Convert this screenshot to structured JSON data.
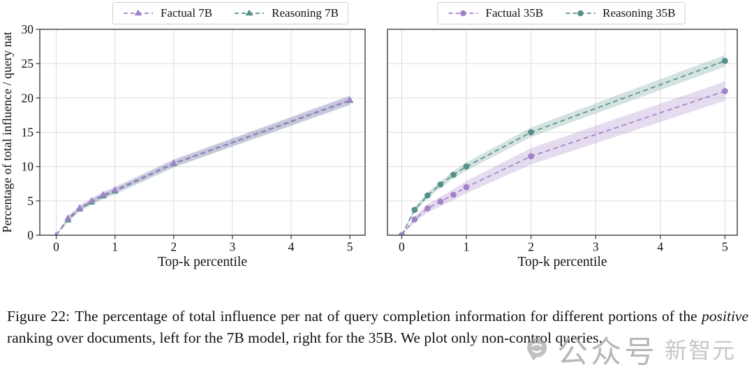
{
  "caption": {
    "label": "Figure 22:",
    "before_italic": "The percentage of total influence per nat of query completion information for different portions of the ",
    "italic": "positive",
    "after_italic": " ranking over documents, left for the 7B model, right for the 35B. We plot only non-control queries."
  },
  "watermark": {
    "icon": "chat-bubble-icon",
    "text_primary": "公众号",
    "text_secondary": "新智元"
  },
  "colors": {
    "factual_purple": "#a283c8",
    "reasoning_teal": "#55918a",
    "grid": "#dcdcdc",
    "spine": "#4a4a4a"
  },
  "chart_data": [
    {
      "type": "line",
      "title": "",
      "xlabel": "Top-k percentile",
      "ylabel": "Percentage of total influence / query nat",
      "xlim": [
        -0.28,
        5.26
      ],
      "ylim": [
        0,
        30
      ],
      "xticks": [
        0,
        1,
        2,
        3,
        4,
        5
      ],
      "yticks": [
        0,
        5,
        10,
        15,
        20,
        25,
        30
      ],
      "grid": true,
      "legend_position": "top-center",
      "show_y_tick_labels": true,
      "x": [
        0,
        0.2,
        0.4,
        0.6,
        0.8,
        1,
        2,
        5
      ],
      "series": [
        {
          "name": "Factual 7B",
          "marker": "triangle",
          "color": "#a283c8",
          "band_color": "rgba(162,131,200,0.28)",
          "values": [
            0,
            2.5,
            4.0,
            5.0,
            5.9,
            6.6,
            10.5,
            19.7
          ],
          "band": [
            0.05,
            0.3,
            0.35,
            0.4,
            0.45,
            0.45,
            0.55,
            0.65
          ]
        },
        {
          "name": "Reasoning 7B",
          "marker": "triangle",
          "color": "#55918a",
          "band_color": "rgba(85,145,138,0.25)",
          "values": [
            0,
            2.2,
            3.8,
            4.8,
            5.7,
            6.4,
            10.4,
            19.6
          ],
          "band": [
            0.05,
            0.3,
            0.35,
            0.4,
            0.45,
            0.45,
            0.55,
            0.65
          ]
        }
      ]
    },
    {
      "type": "line",
      "title": "",
      "xlabel": "Top-k percentile",
      "ylabel": "",
      "xlim": [
        -0.22,
        5.19
      ],
      "ylim": [
        0,
        30
      ],
      "xticks": [
        0,
        1,
        2,
        3,
        4,
        5
      ],
      "yticks": [
        0,
        5,
        10,
        15,
        20,
        25,
        30
      ],
      "grid": true,
      "legend_position": "top-center",
      "show_y_tick_labels": false,
      "x": [
        0,
        0.2,
        0.4,
        0.6,
        0.8,
        1,
        2,
        5
      ],
      "series": [
        {
          "name": "Factual 35B",
          "marker": "circle",
          "color": "#a283c8",
          "band_color": "rgba(162,131,200,0.28)",
          "values": [
            0,
            2.3,
            3.9,
            4.9,
            5.9,
            7.0,
            11.5,
            21.0
          ],
          "band": [
            0.05,
            0.45,
            0.6,
            0.7,
            0.8,
            0.9,
            1.2,
            1.4
          ]
        },
        {
          "name": "Reasoning 35B",
          "marker": "circle",
          "color": "#55918a",
          "band_color": "rgba(85,145,138,0.25)",
          "values": [
            0,
            3.7,
            5.8,
            7.4,
            8.8,
            10.0,
            15.0,
            25.4
          ],
          "band": [
            0.05,
            0.35,
            0.45,
            0.5,
            0.55,
            0.6,
            0.7,
            0.85
          ]
        }
      ]
    }
  ]
}
